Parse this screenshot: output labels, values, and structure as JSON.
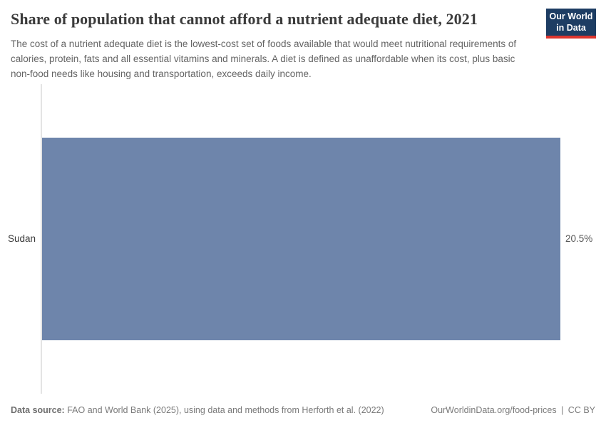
{
  "header": {
    "title": "Share of population that cannot afford a nutrient adequate diet, 2021",
    "subtitle": "The cost of a nutrient adequate diet is the lowest-cost set of foods available that would meet nutritional requirements of calories, protein, fats and all essential vitamins and minerals. A diet is defined as unaffordable when its cost, plus basic non-food needs like housing and transportation, exceeds daily income.",
    "logo": {
      "line1": "Our World",
      "line2": "in Data",
      "bg_color": "#1d3d63",
      "accent_color": "#dc352e"
    }
  },
  "chart_data": {
    "type": "bar",
    "orientation": "horizontal",
    "title": "Share of population that cannot afford a nutrient adequate diet, 2021",
    "categories": [
      "Sudan"
    ],
    "values": [
      20.5
    ],
    "value_labels": [
      "20.5%"
    ],
    "unit": "%",
    "xlabel": "",
    "ylabel": "",
    "xlim": [
      0,
      20.5
    ],
    "grid": false,
    "legend": false,
    "bar_color": "#6e85ab",
    "axis_line_color": "#e4e4e4"
  },
  "footer": {
    "source_label": "Data source:",
    "source_text": "FAO and World Bank (2025), using data and methods from Herforth et al. (2022)",
    "url_text": "OurWorldinData.org/food-prices",
    "separator": "|",
    "license": "CC BY"
  }
}
